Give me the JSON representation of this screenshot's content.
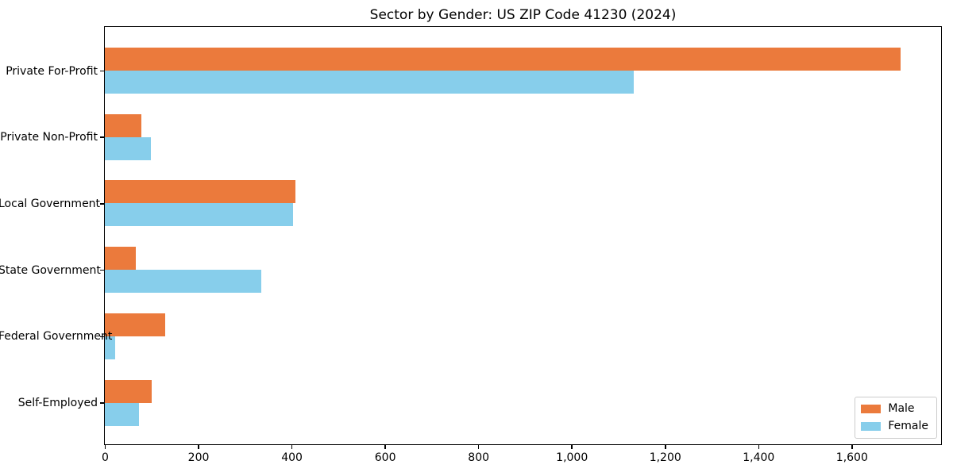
{
  "title": "Sector by Gender: US ZIP Code 41230 (2024)",
  "chart_data": {
    "type": "bar",
    "orientation": "horizontal",
    "title": "Sector by Gender: US ZIP Code 41230 (2024)",
    "categories": [
      "Private For-Profit",
      "Private Non-Profit",
      "Local Government",
      "State Government",
      "Federal Government",
      "Self-Employed"
    ],
    "series": [
      {
        "name": "Male",
        "color": "#EB7A3C",
        "values": [
          1705,
          78,
          409,
          67,
          130,
          100
        ]
      },
      {
        "name": "Female",
        "color": "#87CEEB",
        "values": [
          1134,
          99,
          403,
          335,
          22,
          73
        ]
      }
    ],
    "xlabel": "",
    "ylabel": "",
    "xlim": [
      0,
      1790
    ],
    "xticks": [
      0,
      200,
      400,
      600,
      800,
      1000,
      1200,
      1400,
      1600
    ],
    "xtick_labels": [
      "0",
      "200",
      "400",
      "600",
      "800",
      "1,000",
      "1,200",
      "1,400",
      "1,600"
    ],
    "grid": false,
    "legend_position": "lower right",
    "legend_entries": [
      "Male",
      "Female"
    ]
  }
}
